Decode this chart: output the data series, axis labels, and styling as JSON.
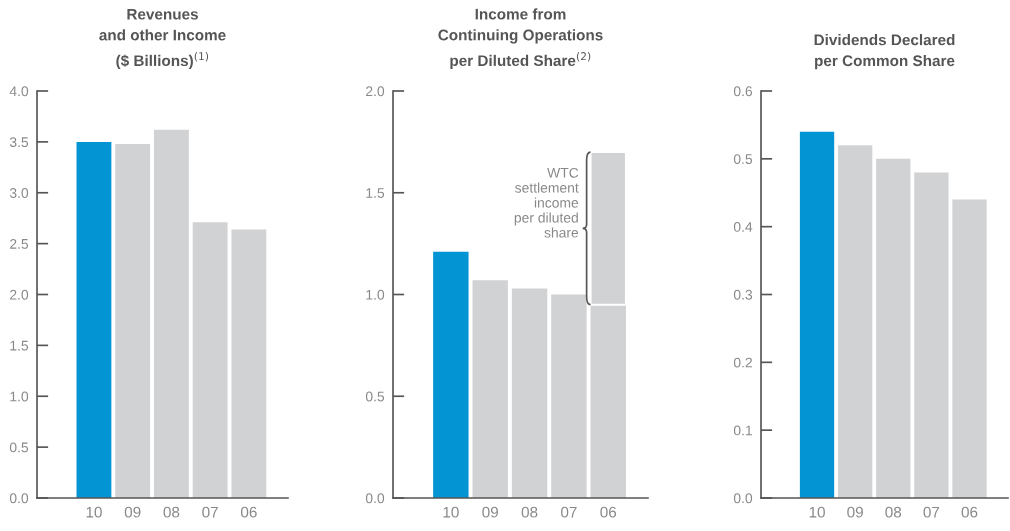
{
  "chart_data": [
    {
      "type": "bar",
      "title": "Revenues\nand other Income\n($ Billions)$^{(1)}$",
      "categories": [
        "10",
        "09",
        "08",
        "07",
        "06"
      ],
      "series": [
        {
          "colors": [
            "#0395d3",
            "#d1d2d4",
            "#d1d2d4",
            "#d1d2d4",
            "#d1d2d4"
          ],
          "values": [
            3.5,
            3.48,
            3.62,
            2.71,
            2.64
          ]
        }
      ],
      "ylim": [
        0.0,
        4.0
      ],
      "yticks": [
        {
          "value": 0,
          "label": "0.0"
        },
        0.5,
        {
          "value": 1,
          "label": "1.0"
        },
        1.5,
        {
          "value": 2,
          "label": "2.0"
        },
        2.5,
        {
          "value": 3,
          "label": "3.0"
        },
        3.5,
        {
          "value": 4,
          "label": "4.0"
        }
      ],
      "grid": false,
      "legend": false
    },
    {
      "type": "bar",
      "title": "Income from\nContinuing Operations\nper Diluted Share$^{(2)}$",
      "categories": [
        "10",
        "09",
        "08",
        "07",
        "06"
      ],
      "stacked": true,
      "series": [
        {
          "colors": [
            "#0395d3",
            "#d1d2d4",
            "#d1d2d4",
            "#d1d2d4",
            "#d1d2d4"
          ],
          "values": [
            1.21,
            1.07,
            1.03,
            1.0,
            0.95
          ]
        },
        {
          "colors": [
            null,
            null,
            null,
            null,
            "#d1d2d4"
          ],
          "values": [
            null,
            null,
            null,
            null,
            0.75
          ]
        }
      ],
      "annotations": [
        "WTC\nsettlement\nincome\nper diluted\nshare"
      ],
      "ylim": [
        0.0,
        2.0
      ],
      "yticks": [
        {
          "value": 0,
          "label": "0.0"
        },
        0.5,
        {
          "value": 1,
          "label": "1.0"
        },
        1.5,
        {
          "value": 2,
          "label": "2.0"
        }
      ],
      "grid": false,
      "legend": false
    },
    {
      "type": "bar",
      "title": "Dividends Declared\nper Common Share",
      "categories": [
        "10",
        "09",
        "08",
        "07",
        "06"
      ],
      "series": [
        {
          "colors": [
            "#0395d3",
            "#d1d2d4",
            "#d1d2d4",
            "#d1d2d4",
            "#d1d2d4"
          ],
          "values": [
            0.54,
            0.52,
            0.5,
            0.48,
            0.44
          ]
        }
      ],
      "ylim": [
        0.0,
        0.6
      ],
      "yticks": [
        {
          "value": 0,
          "label": "0.0"
        },
        0.1,
        0.2,
        0.3,
        0.4,
        0.5,
        0.6
      ],
      "grid": false,
      "legend": false
    }
  ]
}
